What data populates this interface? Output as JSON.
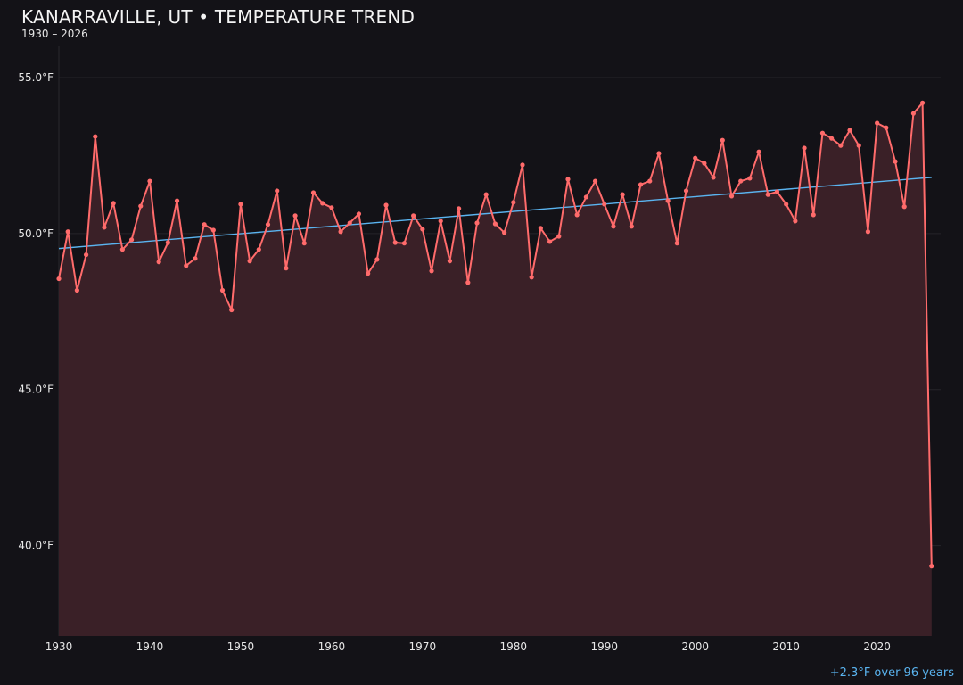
{
  "chart_data": {
    "type": "area",
    "title": "KANARRAVILLE, UT • TEMPERATURE TREND",
    "subtitle": "1930 – 2026",
    "annotation": "+2.3°F over 96 years",
    "xlabel": "",
    "ylabel": "",
    "xlim": [
      1930,
      2027
    ],
    "ylim": [
      37.1,
      56.4
    ],
    "grid": true,
    "x_ticks": [
      1930,
      1940,
      1950,
      1960,
      1970,
      1980,
      1990,
      2000,
      2010,
      2020
    ],
    "y_ticks": [
      40.0,
      45.0,
      50.0,
      55.0
    ],
    "y_tick_labels": [
      "40.0°F",
      "45.0°F",
      "50.0°F",
      "55.0°F"
    ],
    "x": [
      1930,
      1931,
      1932,
      1933,
      1934,
      1935,
      1936,
      1937,
      1938,
      1939,
      1940,
      1941,
      1942,
      1943,
      1944,
      1945,
      1946,
      1947,
      1948,
      1949,
      1950,
      1951,
      1952,
      1953,
      1954,
      1955,
      1956,
      1957,
      1958,
      1959,
      1960,
      1961,
      1962,
      1963,
      1964,
      1965,
      1966,
      1967,
      1968,
      1969,
      1970,
      1971,
      1972,
      1973,
      1974,
      1975,
      1976,
      1977,
      1978,
      1979,
      1980,
      1981,
      1982,
      1983,
      1984,
      1985,
      1986,
      1987,
      1988,
      1989,
      1990,
      1991,
      1992,
      1993,
      1994,
      1995,
      1996,
      1997,
      1998,
      1999,
      2000,
      2001,
      2002,
      2003,
      2004,
      2005,
      2006,
      2007,
      2008,
      2009,
      2010,
      2011,
      2012,
      2013,
      2014,
      2015,
      2016,
      2017,
      2018,
      2019,
      2020,
      2021,
      2022,
      2023,
      2024,
      2025,
      2026
    ],
    "values": [
      48.55,
      50.06,
      48.18,
      49.32,
      53.11,
      50.2,
      50.97,
      49.49,
      49.8,
      50.88,
      51.68,
      49.09,
      49.71,
      51.05,
      48.97,
      49.2,
      50.29,
      50.11,
      48.18,
      47.55,
      50.94,
      49.12,
      49.49,
      50.29,
      51.37,
      48.89,
      50.57,
      49.69,
      51.31,
      50.97,
      50.83,
      50.06,
      50.34,
      50.63,
      48.72,
      49.17,
      50.91,
      49.71,
      49.69,
      50.57,
      50.14,
      48.8,
      50.4,
      49.12,
      50.8,
      48.43,
      50.34,
      51.25,
      50.31,
      50.03,
      51.0,
      52.2,
      48.6,
      50.17,
      49.74,
      49.91,
      51.74,
      50.6,
      51.17,
      51.68,
      50.94,
      50.23,
      51.25,
      50.23,
      51.57,
      51.68,
      52.57,
      51.05,
      49.69,
      51.37,
      52.42,
      52.25,
      51.8,
      52.99,
      51.2,
      51.68,
      51.77,
      52.62,
      51.25,
      51.34,
      50.94,
      50.4,
      52.74,
      50.6,
      53.22,
      53.05,
      52.82,
      53.31,
      52.82,
      50.06,
      53.54,
      53.39,
      52.31,
      50.86,
      53.85,
      54.19,
      39.34
    ],
    "trend": {
      "x": [
        1930,
        2026
      ],
      "y": [
        49.52,
        51.8
      ]
    },
    "colors": {
      "background": "#131217",
      "line": "#ff6b6b",
      "fill": "#3a2027",
      "trend": "#5ab4f0",
      "grid": "#26242a"
    }
  }
}
